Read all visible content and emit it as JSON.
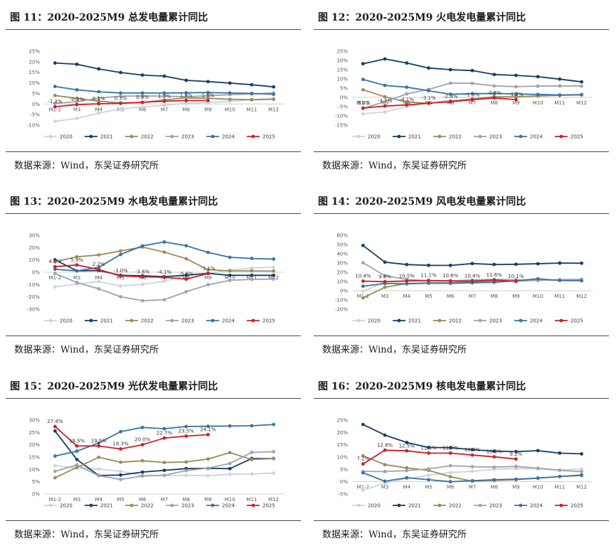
{
  "source_prefix": "数据来源：",
  "source_name": "Wind，东吴证券研究所",
  "chart_data": [
    {
      "type": "line",
      "title": "图 11：2020-2025M9 总发电量累计同比",
      "categories": [
        "M1-2",
        "M3",
        "M4",
        "M5",
        "M6",
        "M7",
        "M8",
        "M9",
        "M10",
        "M11",
        "M12"
      ],
      "yticks": [
        "-10%",
        "-5%",
        "0%",
        "5%",
        "10%",
        "15%",
        "20%",
        "25%"
      ],
      "ylim": [
        -10,
        25
      ],
      "series": [
        {
          "name": "2020",
          "color": "#cdd3dd",
          "values": [
            -8.2,
            -6.8,
            -4.3,
            -2.3,
            -1.4,
            -0.7,
            0.3,
            0.7,
            1.2,
            2.0,
            2.7
          ]
        },
        {
          "name": "2021",
          "color": "#153d6b",
          "values": [
            19.4,
            18.8,
            16.6,
            14.9,
            13.7,
            13.2,
            11.2,
            10.6,
            9.9,
            9.1,
            8.1
          ]
        },
        {
          "name": "2022",
          "color": "#9a8c55",
          "values": [
            4.0,
            2.7,
            1.3,
            0.5,
            0.7,
            1.9,
            2.9,
            2.7,
            2.2,
            2.0,
            2.2
          ]
        },
        {
          "name": "2023",
          "color": "#9ea4ab",
          "values": [
            0.3,
            1.1,
            2.8,
            3.7,
            3.8,
            3.7,
            3.4,
            3.9,
            4.4,
            4.7,
            5.2
          ]
        },
        {
          "name": "2024",
          "color": "#3873a6",
          "values": [
            8.3,
            6.7,
            5.8,
            5.2,
            5.2,
            5.2,
            5.3,
            5.4,
            5.2,
            5.0,
            4.6
          ]
        },
        {
          "name": "2025",
          "color": "#cc1f2a",
          "values": [
            -1.3,
            -0.3,
            0.1,
            0.3,
            0.8,
            1.3,
            1.6,
            1.6
          ]
        }
      ],
      "labels": [
        {
          "i": 0,
          "text": "-1.3%"
        },
        {
          "i": 1,
          "text": "-0.3%"
        },
        {
          "i": 2,
          "text": "0.1%"
        },
        {
          "i": 3,
          "text": "0.3%"
        },
        {
          "i": 4,
          "text": "0.8%"
        },
        {
          "i": 5,
          "text": "1.3%"
        },
        {
          "i": 6,
          "text": "1.6%"
        },
        {
          "i": 7,
          "text": "1.6%"
        }
      ],
      "legend": [
        "2020",
        "2021",
        "2022",
        "2023",
        "2024",
        "2025"
      ]
    },
    {
      "type": "line",
      "title": "图 12：2020-2025M9 火电发电量累计同比",
      "categories": [
        "M1-2",
        "M3",
        "M4",
        "M5",
        "M6",
        "M7",
        "M8",
        "M9",
        "M10",
        "M11",
        "M12"
      ],
      "yticks": [
        "-15%",
        "-10%",
        "-5%",
        "0%",
        "5%",
        "10%",
        "15%",
        "20%",
        "25%"
      ],
      "ylim": [
        -15,
        25
      ],
      "series": [
        {
          "name": "2020",
          "color": "#cdd3dd",
          "values": [
            -8.9,
            -7.9,
            -5.0,
            -3.0,
            -1.6,
            -1.2,
            0.1,
            0.1,
            0.6,
            1.2,
            1.2
          ]
        },
        {
          "name": "2021",
          "color": "#153d6b",
          "values": [
            18.2,
            20.8,
            18.6,
            15.9,
            15.0,
            14.5,
            12.4,
            11.9,
            11.2,
            9.9,
            8.4
          ]
        },
        {
          "name": "2022",
          "color": "#9a8c55",
          "values": [
            4.1,
            0.3,
            -2.5,
            -3.2,
            -2.1,
            -0.8,
            0.3,
            0.3,
            0.8,
            1.1,
            1.4
          ]
        },
        {
          "name": "2023",
          "color": "#9ea4ab",
          "values": [
            -6.0,
            -2.3,
            1.9,
            4.3,
            7.7,
            7.6,
            6.2,
            5.8,
            6.1,
            6.2,
            6.1
          ]
        },
        {
          "name": "2024",
          "color": "#3873a6",
          "values": [
            9.7,
            6.5,
            5.5,
            3.6,
            1.7,
            2.0,
            2.1,
            1.9,
            1.6,
            1.3,
            1.5
          ]
        },
        {
          "name": "2025",
          "color": "#cc1f2a",
          "values": [
            -5.8,
            -4.7,
            -4.1,
            -3.1,
            -2.4,
            -1.3,
            -0.3,
            -1.2
          ]
        }
      ],
      "labels": [
        {
          "i": 0,
          "text": "-5.8%"
        },
        {
          "i": 1,
          "text": "-4.7%"
        },
        {
          "i": 2,
          "text": "-4.1%"
        },
        {
          "i": 3,
          "text": "-3.1%"
        },
        {
          "i": 4,
          "text": "-2.4%"
        },
        {
          "i": 5,
          "text": "-1.3%"
        },
        {
          "i": 6,
          "text": "-0.3%"
        },
        {
          "i": 7,
          "text": "-1.2%"
        }
      ],
      "legend": [
        "2020",
        "2021",
        "2022",
        "2023",
        "2024",
        "2025"
      ]
    },
    {
      "type": "line",
      "title": "图 13：2020-2025M9 水电发电量累计同比",
      "categories": [
        "M1-2",
        "M3",
        "M4",
        "M5",
        "M6",
        "M7",
        "M8",
        "M9",
        "M10",
        "M11",
        "M12"
      ],
      "yticks": [
        "-30%",
        "-20%",
        "-10%",
        "0%",
        "10%",
        "20%",
        "30%"
      ],
      "ylim": [
        -30,
        30
      ],
      "series": [
        {
          "name": "2020",
          "color": "#cdd3dd",
          "values": [
            -11.9,
            -9.5,
            -7.6,
            -11.2,
            -9.8,
            -7.3,
            -2.4,
            -1.1,
            1.9,
            3.3,
            4.1
          ]
        },
        {
          "name": "2021",
          "color": "#153d6b",
          "values": [
            10.1,
            1.1,
            1.4,
            -2.5,
            -2.9,
            -3.6,
            -2.4,
            -0.9,
            -2.5,
            -2.5,
            -2.5
          ]
        },
        {
          "name": "2022",
          "color": "#9a8c55",
          "values": [
            8.5,
            12.5,
            14.0,
            17.3,
            20.4,
            16.3,
            11.0,
            2.1,
            1.1,
            1.1,
            1.0
          ]
        },
        {
          "name": "2023",
          "color": "#9ea4ab",
          "values": [
            -1.0,
            -8.3,
            -13.5,
            -19.9,
            -23.1,
            -22.3,
            -15.8,
            -10.2,
            -6.6,
            -5.8,
            -5.6
          ]
        },
        {
          "name": "2024",
          "color": "#3873a6",
          "values": [
            2.4,
            1.1,
            3.9,
            14.4,
            21.4,
            24.6,
            21.5,
            16.1,
            12.1,
            11.2,
            10.7
          ]
        },
        {
          "name": "2025",
          "color": "#cc1f2a",
          "values": [
            4.5,
            5.9,
            2.2,
            -3.0,
            -3.7,
            -4.1,
            -5.6,
            -1.1
          ]
        }
      ],
      "labels": [
        {
          "i": 0,
          "text": "4.5%"
        },
        {
          "i": 1,
          "text": "5.9%"
        },
        {
          "i": 2,
          "text": "2.2%"
        },
        {
          "i": 3,
          "text": "-3.0%"
        },
        {
          "i": 4,
          "text": "-3.6%"
        },
        {
          "i": 5,
          "text": "-4.1%"
        },
        {
          "i": 6,
          "text": "-5.6%"
        },
        {
          "i": 7,
          "text": "-1.1%"
        }
      ],
      "legend": [
        "2020",
        "2021",
        "2022",
        "2023",
        "2024",
        "2025"
      ]
    },
    {
      "type": "line",
      "title": "图 14：2020-2025M9 风电发电量累计同比",
      "categories": [
        "M1-2",
        "M3",
        "M4",
        "M5",
        "M6",
        "M7",
        "M8",
        "M9",
        "M10",
        "M11",
        "M12"
      ],
      "yticks": [
        "-20%",
        "-10%",
        "0%",
        "10%",
        "20%",
        "30%",
        "40%",
        "50%",
        "60%"
      ],
      "ylim": [
        -20,
        60
      ],
      "series": [
        {
          "name": "2020",
          "color": "#cdd3dd",
          "values": [
            -0.6,
            9.8,
            10.8,
            11.0,
            10.9,
            10.8,
            11.0,
            10.8,
            11.3,
            11.6,
            11.3
          ]
        },
        {
          "name": "2021",
          "color": "#153d6b",
          "values": [
            49.0,
            30.9,
            28.3,
            27.5,
            27.4,
            29.4,
            28.4,
            28.6,
            29.2,
            29.9,
            29.8
          ]
        },
        {
          "name": "2022",
          "color": "#9a8c55",
          "values": [
            -7.8,
            3.7,
            7.8,
            8.5,
            8.7,
            9.7,
            10.6,
            10.4,
            11.5,
            11.6,
            12.3
          ]
        },
        {
          "name": "2023",
          "color": "#9ea4ab",
          "values": [
            30.2,
            16.2,
            12.3,
            10.7,
            10.6,
            11.6,
            12.3,
            11.8,
            11.1,
            12.0,
            12.3
          ]
        },
        {
          "name": "2024",
          "color": "#3873a6",
          "values": [
            4.9,
            7.8,
            7.5,
            8.2,
            8.0,
            8.6,
            9.1,
            10.8,
            12.9,
            11.1,
            10.8
          ]
        },
        {
          "name": "2025",
          "color": "#cc1f2a",
          "values": [
            10.4,
            9.8,
            10.5,
            11.1,
            10.6,
            10.4,
            11.6,
            10.1
          ]
        }
      ],
      "labels": [
        {
          "i": 0,
          "text": "10.4%"
        },
        {
          "i": 1,
          "text": "9.8%"
        },
        {
          "i": 2,
          "text": "10.5%"
        },
        {
          "i": 3,
          "text": "11.1%"
        },
        {
          "i": 4,
          "text": "10.6%"
        },
        {
          "i": 5,
          "text": "10.4%"
        },
        {
          "i": 6,
          "text": "11.6%"
        },
        {
          "i": 7,
          "text": "10.1%"
        }
      ],
      "legend": [
        "2020",
        "2021",
        "2022",
        "2023",
        "2024",
        "2025"
      ]
    },
    {
      "type": "line",
      "title": "图 15：2020-2025M9 光伏发电量累计同比",
      "categories": [
        "M1-2",
        "M3",
        "M4",
        "M5",
        "M6",
        "M7",
        "M8",
        "M9",
        "M10",
        "M11",
        "M12"
      ],
      "yticks": [
        "0%",
        "5%",
        "10%",
        "15%",
        "20%",
        "25%",
        "30%"
      ],
      "ylim": [
        0,
        30
      ],
      "series": [
        {
          "name": "2020",
          "color": "#cdd3dd",
          "values": [
            11.5,
            10.5,
            10.1,
            9.2,
            7.6,
            7.5,
            7.6,
            7.4,
            8.0,
            8.1,
            8.5
          ]
        },
        {
          "name": "2021",
          "color": "#153d6b",
          "values": [
            25.6,
            14.0,
            7.5,
            7.7,
            8.9,
            9.6,
            10.3,
            10.4,
            10.3,
            14.4,
            14.4
          ]
        },
        {
          "name": "2022",
          "color": "#9a8c55",
          "values": [
            6.6,
            10.8,
            14.9,
            12.9,
            13.5,
            12.8,
            13.0,
            14.2,
            16.8,
            14.0,
            14.4
          ]
        },
        {
          "name": "2023",
          "color": "#9ea4ab",
          "values": [
            9.2,
            11.8,
            7.4,
            5.9,
            7.3,
            7.6,
            9.5,
            10.5,
            12.4,
            16.9,
            17.2
          ]
        },
        {
          "name": "2024",
          "color": "#3873a6",
          "values": [
            15.4,
            17.4,
            20.7,
            25.3,
            27.0,
            26.5,
            27.4,
            27.5,
            27.6,
            27.7,
            28.2
          ]
        },
        {
          "name": "2025",
          "color": "#cc1f2a",
          "values": [
            27.4,
            19.5,
            19.5,
            18.3,
            20.0,
            22.7,
            23.5,
            24.1
          ]
        }
      ],
      "labels": [
        {
          "i": 0,
          "text": "27.4%"
        },
        {
          "i": 1,
          "text": "19.5%"
        },
        {
          "i": 2,
          "text": "19.5%"
        },
        {
          "i": 3,
          "text": "18.3%"
        },
        {
          "i": 4,
          "text": "20.0%"
        },
        {
          "i": 5,
          "text": "22.7%"
        },
        {
          "i": 6,
          "text": "23.5%"
        },
        {
          "i": 7,
          "text": "24.1%"
        }
      ],
      "legend": [
        "2020",
        "2021",
        "2022",
        "2023",
        "2024",
        "2025"
      ]
    },
    {
      "type": "line",
      "title": "图 16：2020-2025M9 核电发电量累计同比",
      "categories": [
        "M1-2",
        "M3",
        "M4",
        "M5",
        "M6",
        "M7",
        "M8",
        "M9",
        "M10",
        "M11",
        "M12"
      ],
      "yticks": [
        "-5%",
        "0%",
        "5%",
        "10%",
        "15%",
        "20%",
        "25%"
      ],
      "ylim": [
        -5,
        25
      ],
      "series": [
        {
          "name": "2020",
          "color": "#cdd3dd",
          "values": [
            -3.4,
            -0.6,
            1.2,
            2.6,
            3.7,
            4.2,
            5.0,
            5.3,
            5.2,
            4.8,
            5.1
          ]
        },
        {
          "name": "2021",
          "color": "#153d6b",
          "values": [
            23.2,
            18.9,
            15.9,
            13.9,
            13.8,
            13.0,
            12.4,
            12.2,
            12.6,
            11.6,
            11.3
          ]
        },
        {
          "name": "2022",
          "color": "#9a8c55",
          "values": [
            10.5,
            6.9,
            5.6,
            4.6,
            2.0,
            0.2,
            0.5,
            0.8,
            1.5,
            2.1,
            2.5
          ]
        },
        {
          "name": "2023",
          "color": "#9ea4ab",
          "values": [
            4.2,
            4.1,
            4.5,
            5.2,
            6.5,
            6.1,
            5.9,
            6.2,
            5.5,
            4.6,
            4.1
          ]
        },
        {
          "name": "2024",
          "color": "#3873a6",
          "values": [
            3.6,
            0.2,
            1.6,
            0.8,
            0.0,
            0.4,
            0.8,
            1.0,
            1.4,
            2.1,
            2.7
          ]
        },
        {
          "name": "2025",
          "color": "#cc1f2a",
          "values": [
            7.2,
            12.8,
            12.5,
            11.6,
            11.6,
            10.8,
            10.1,
            9.2
          ]
        }
      ],
      "labels": [
        {
          "i": 0,
          "text": "7.2%"
        },
        {
          "i": 1,
          "text": "12.8%"
        },
        {
          "i": 2,
          "text": "12.5%"
        },
        {
          "i": 3,
          "text": "11.6%"
        },
        {
          "i": 4,
          "text": "11.6%"
        },
        {
          "i": 5,
          "text": "10.8%"
        },
        {
          "i": 6,
          "text": "10.1%"
        },
        {
          "i": 7,
          "text": "9.2%"
        }
      ],
      "legend": [
        "2020",
        "2021",
        "2022",
        "2023",
        "2024",
        "2025"
      ]
    }
  ]
}
